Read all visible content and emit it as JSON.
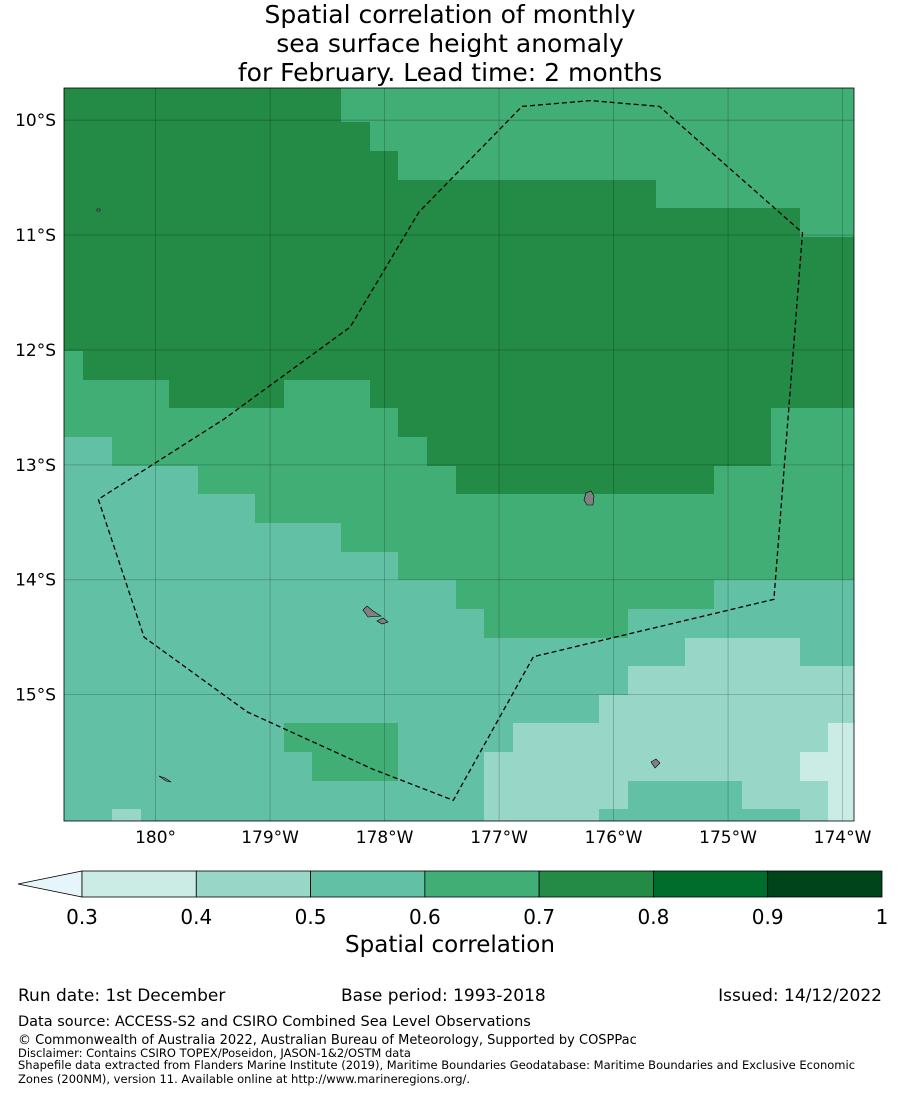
{
  "title": {
    "line1": "Spatial correlation of monthly",
    "line2": "sea surface height anomaly",
    "line3": "for February. Lead time: 2 months"
  },
  "map": {
    "lon_range": [
      -180.8,
      -173.9
    ],
    "lat_range": [
      -16.1,
      -9.72
    ],
    "lat_ticks": [
      {
        "value": -10,
        "label": "10°S"
      },
      {
        "value": -11,
        "label": "11°S"
      },
      {
        "value": -12,
        "label": "12°S"
      },
      {
        "value": -13,
        "label": "13°S"
      },
      {
        "value": -14,
        "label": "14°S"
      },
      {
        "value": -15,
        "label": "15°S"
      }
    ],
    "lon_ticks": [
      {
        "value": -180,
        "label": "180°"
      },
      {
        "value": -179,
        "label": "179°W"
      },
      {
        "value": -178,
        "label": "178°W"
      },
      {
        "value": -177,
        "label": "177°W"
      },
      {
        "value": -176,
        "label": "176°W"
      },
      {
        "value": -175,
        "label": "175°W"
      },
      {
        "value": -174,
        "label": "174°W"
      }
    ],
    "colors": {
      "0.3-0.4": "#cbece4",
      "0.4-0.5": "#98d6c7",
      "0.5-0.6": "#62c1a4",
      "0.6-0.7": "#41ae76",
      "0.7-0.8": "#238b45",
      "0.8-0.9": "#006d2c",
      "0.9-1": "#00441b",
      "below": "#e5f5f9",
      "land": "#808080"
    },
    "eez_boundary": [
      [
        -176.8,
        -9.88
      ],
      [
        -176.2,
        -9.83
      ],
      [
        -175.6,
        -9.88
      ],
      [
        -174.35,
        -10.98
      ],
      [
        -174.6,
        -14.17
      ],
      [
        -176.7,
        -14.67
      ],
      [
        -177.4,
        -15.92
      ],
      [
        -178.1,
        -15.65
      ],
      [
        -179.2,
        -15.15
      ],
      [
        -180.1,
        -14.5
      ],
      [
        -180.5,
        -13.3
      ],
      [
        -179.4,
        -12.6
      ],
      [
        -178.3,
        -11.8
      ],
      [
        -177.7,
        -10.8
      ],
      [
        -176.8,
        -9.88
      ]
    ]
  },
  "colorbar": {
    "ticks": [
      "0.3",
      "0.4",
      "0.5",
      "0.6",
      "0.7",
      "0.8",
      "0.9",
      "1"
    ],
    "colors": [
      "#cbece4",
      "#98d6c7",
      "#62c1a4",
      "#41ae76",
      "#238b45",
      "#006d2c",
      "#00441b"
    ],
    "extend_color": "#e5f5f9",
    "label": "Spatial correlation"
  },
  "footer": {
    "run_date": "Run date: 1st December",
    "base_period": "Base period: 1993-2018",
    "issued": "Issued: 14/12/2022",
    "data_source": "Data source: ACCESS-S2 and CSIRO Combined Sea Level Observations",
    "copyright": "© Commonwealth of Australia 2022, Australian Bureau of Meteorology, Supported by COSPPac",
    "disclaimer": "Disclaimer: Contains CSIRO TOPEX/Poseidon, JASON-1&2/OSTM data",
    "shapefile_1": "Shapefile data extracted from Flanders Marine Institute (2019), Maritime Boundaries Geodatabase: Maritime Boundaries and Exclusive Economic",
    "shapefile_2": "Zones (200NM), version 11. Available online at http://www.marineregions.org/."
  }
}
